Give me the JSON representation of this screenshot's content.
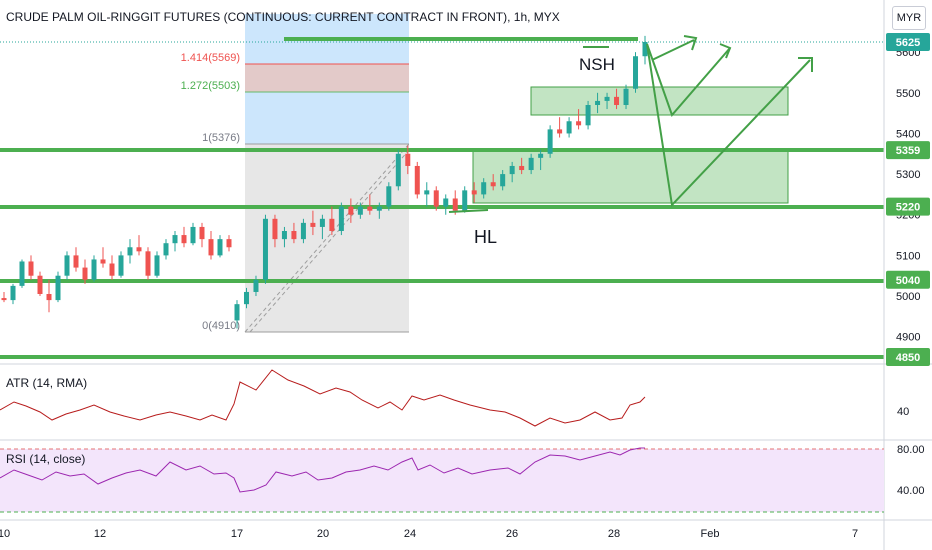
{
  "header": {
    "symbol_title": "CRUDE PALM OIL-RINGGIT FUTURES (CONTINUOUS: CURRENT CONTRACT IN FRONT), 1h, MYX",
    "currency": "MYR"
  },
  "colors": {
    "up": "#26a69a",
    "down": "#ef5350",
    "level_line": "#4caf50",
    "fib_zone_blue": "#bbdefb",
    "fib_zone_gray": "#e0e0e0",
    "fib_zone_red": "#e6c7c3",
    "fib_zone_green": "#d7f0d4",
    "annotation_box": "#66bb6a",
    "atr_line": "#b71c1c",
    "rsi_line": "#9c27b0",
    "rsi_band": "#f3e5fb"
  },
  "annotations": {
    "nsh_label": "NSH",
    "hl_label": "HL"
  },
  "indicators": {
    "atr_label": "ATR (14, RMA)",
    "rsi_label": "RSI (14, close)",
    "rsi_upper": "80.00",
    "rsi_lower": "40.00"
  },
  "chart_data": {
    "type": "candlestick",
    "title": "CRUDE PALM OIL-RINGGIT FUTURES (CONTINUOUS: CURRENT CONTRACT IN FRONT), 1h, MYX",
    "x_tick_labels": [
      "10",
      "12",
      "17",
      "20",
      "24",
      "26",
      "28",
      "Feb",
      "7"
    ],
    "y_tick_labels": [
      "4900",
      "5000",
      "5100",
      "5200",
      "5300",
      "5400",
      "5500",
      "5600"
    ],
    "ylim": [
      4840,
      5720
    ],
    "price_tags": [
      {
        "label": "5625",
        "value": 5625,
        "highlight": true
      },
      {
        "label": "5359",
        "value": 5359
      },
      {
        "label": "5220",
        "value": 5220
      },
      {
        "label": "5040",
        "value": 5040
      },
      {
        "label": "4850",
        "value": 4850
      }
    ],
    "horizontal_levels": [
      5359,
      5220,
      5040,
      4850
    ],
    "fib_labels": [
      {
        "label": "1.414(5569)",
        "value": 5569
      },
      {
        "label": "1.272(5503)",
        "value": 5503
      },
      {
        "label": "1(5376)",
        "value": 5376
      },
      {
        "label": "0(4910)",
        "value": 4910
      }
    ],
    "candles": [
      [
        4995,
        5010,
        4985,
        4990
      ],
      [
        4990,
        5030,
        4980,
        5025
      ],
      [
        5025,
        5090,
        5020,
        5085
      ],
      [
        5085,
        5100,
        5040,
        5050
      ],
      [
        5050,
        5060,
        5000,
        5005
      ],
      [
        5005,
        5040,
        4960,
        4990
      ],
      [
        4990,
        5060,
        4985,
        5050
      ],
      [
        5050,
        5110,
        5040,
        5100
      ],
      [
        5100,
        5120,
        5060,
        5070
      ],
      [
        5070,
        5090,
        5030,
        5040
      ],
      [
        5040,
        5100,
        5035,
        5090
      ],
      [
        5090,
        5120,
        5070,
        5080
      ],
      [
        5080,
        5100,
        5040,
        5050
      ],
      [
        5050,
        5110,
        5045,
        5100
      ],
      [
        5100,
        5140,
        5080,
        5120
      ],
      [
        5120,
        5150,
        5100,
        5110
      ],
      [
        5110,
        5120,
        5040,
        5050
      ],
      [
        5050,
        5110,
        5045,
        5100
      ],
      [
        5100,
        5140,
        5090,
        5130
      ],
      [
        5130,
        5160,
        5110,
        5150
      ],
      [
        5150,
        5170,
        5120,
        5130
      ],
      [
        5130,
        5180,
        5125,
        5170
      ],
      [
        5170,
        5180,
        5120,
        5140
      ],
      [
        5140,
        5160,
        5090,
        5100
      ],
      [
        5100,
        5150,
        5095,
        5140
      ],
      [
        5140,
        5150,
        5110,
        5120
      ],
      [
        4940,
        4990,
        4920,
        4980
      ],
      [
        4980,
        5020,
        4970,
        5010
      ],
      [
        5010,
        5050,
        5000,
        5040
      ],
      [
        5040,
        5200,
        5030,
        5190
      ],
      [
        5190,
        5200,
        5120,
        5140
      ],
      [
        5140,
        5170,
        5120,
        5160
      ],
      [
        5160,
        5180,
        5130,
        5140
      ],
      [
        5140,
        5190,
        5130,
        5180
      ],
      [
        5180,
        5210,
        5150,
        5170
      ],
      [
        5170,
        5200,
        5140,
        5190
      ],
      [
        5190,
        5220,
        5150,
        5160
      ],
      [
        5160,
        5230,
        5150,
        5220
      ],
      [
        5220,
        5240,
        5180,
        5200
      ],
      [
        5200,
        5230,
        5190,
        5220
      ],
      [
        5220,
        5250,
        5200,
        5210
      ],
      [
        5210,
        5230,
        5190,
        5220
      ],
      [
        5220,
        5280,
        5210,
        5270
      ],
      [
        5270,
        5360,
        5260,
        5350
      ],
      [
        5350,
        5370,
        5300,
        5320
      ],
      [
        5320,
        5330,
        5240,
        5250
      ],
      [
        5250,
        5280,
        5220,
        5260
      ],
      [
        5260,
        5270,
        5210,
        5220
      ],
      [
        5220,
        5250,
        5200,
        5240
      ],
      [
        5240,
        5260,
        5200,
        5210
      ],
      [
        5210,
        5270,
        5205,
        5260
      ],
      [
        5260,
        5280,
        5230,
        5250
      ],
      [
        5250,
        5290,
        5240,
        5280
      ],
      [
        5280,
        5300,
        5260,
        5270
      ],
      [
        5270,
        5310,
        5260,
        5300
      ],
      [
        5300,
        5330,
        5280,
        5320
      ],
      [
        5320,
        5340,
        5300,
        5310
      ],
      [
        5310,
        5350,
        5300,
        5340
      ],
      [
        5340,
        5360,
        5310,
        5350
      ],
      [
        5350,
        5420,
        5340,
        5410
      ],
      [
        5410,
        5440,
        5390,
        5400
      ],
      [
        5400,
        5440,
        5390,
        5430
      ],
      [
        5430,
        5460,
        5410,
        5420
      ],
      [
        5420,
        5480,
        5410,
        5470
      ],
      [
        5470,
        5500,
        5450,
        5480
      ],
      [
        5480,
        5500,
        5460,
        5490
      ],
      [
        5490,
        5510,
        5460,
        5470
      ],
      [
        5470,
        5520,
        5460,
        5510
      ],
      [
        5510,
        5600,
        5500,
        5590
      ],
      [
        5590,
        5640,
        5570,
        5625
      ]
    ]
  }
}
